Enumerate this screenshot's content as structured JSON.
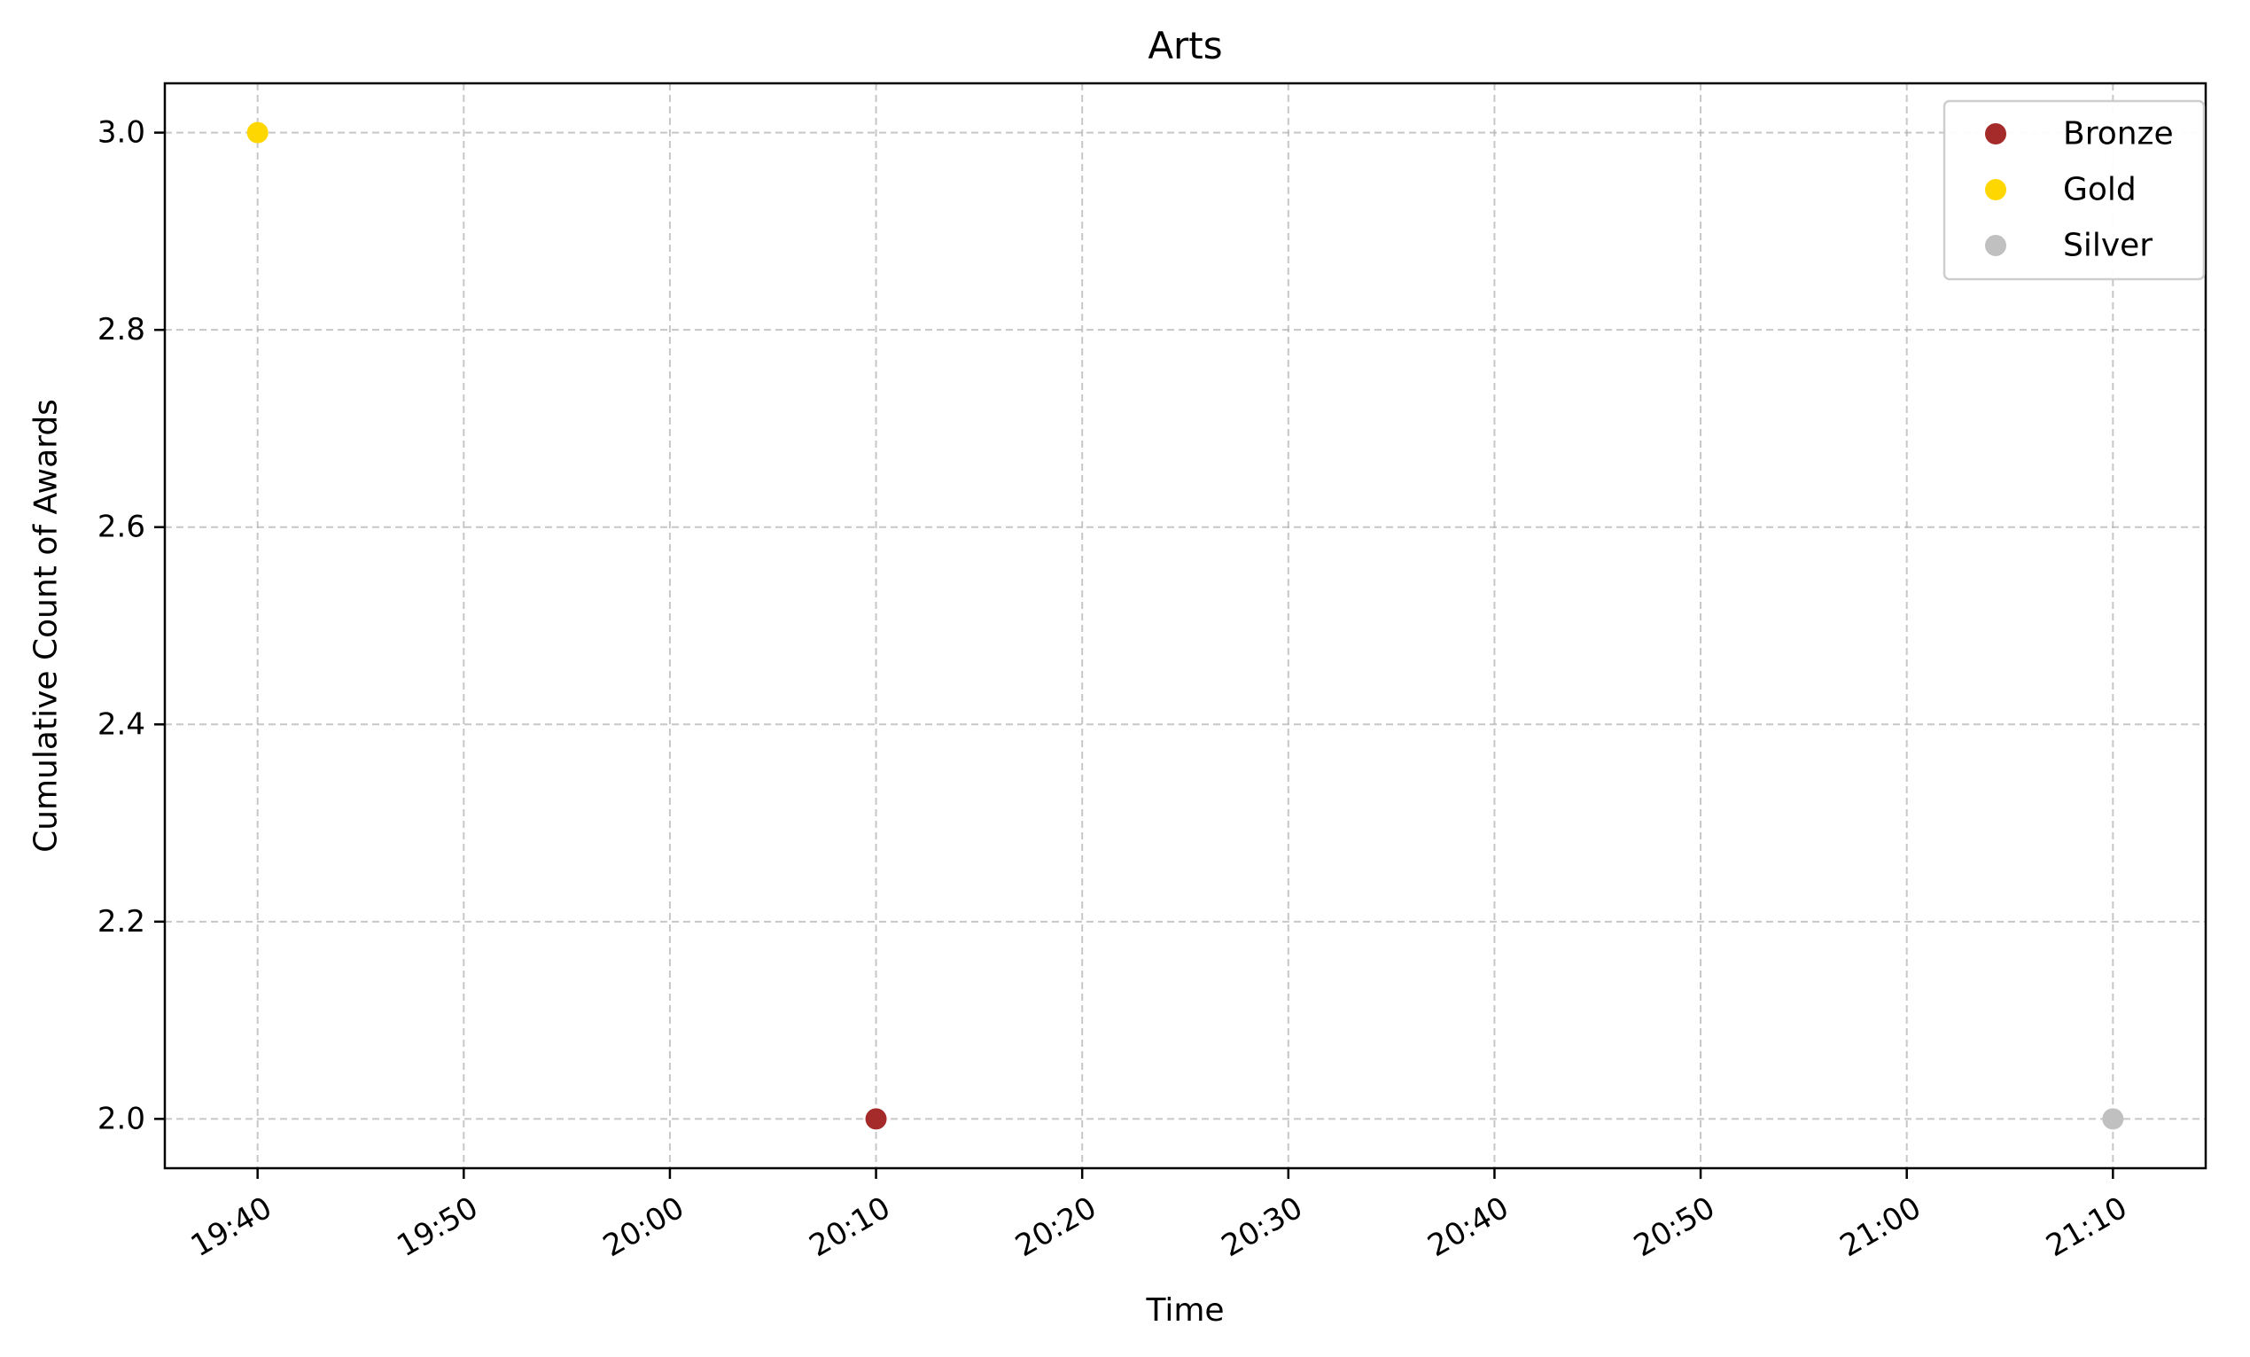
{
  "chart_data": {
    "type": "scatter",
    "title": "Arts",
    "xlabel": "Time",
    "ylabel": "Cumulative Count of Awards",
    "x_ticks": [
      "19:40",
      "19:50",
      "20:00",
      "20:10",
      "20:20",
      "20:30",
      "20:40",
      "20:50",
      "21:00",
      "21:10"
    ],
    "y_ticks": [
      "2.0",
      "2.2",
      "2.4",
      "2.6",
      "2.8",
      "3.0"
    ],
    "xlim": [
      "19:35.5",
      "21:14.5"
    ],
    "ylim": [
      1.95,
      3.05
    ],
    "grid": true,
    "legend_position": "top-right",
    "series": [
      {
        "name": "Bronze",
        "color": "#a52a2a",
        "points": [
          {
            "x": "20:10",
            "y": 2
          }
        ]
      },
      {
        "name": "Gold",
        "color": "#ffd700",
        "points": [
          {
            "x": "19:40",
            "y": 3
          }
        ]
      },
      {
        "name": "Silver",
        "color": "#c0c0c0",
        "points": [
          {
            "x": "21:10",
            "y": 2
          }
        ]
      }
    ]
  }
}
